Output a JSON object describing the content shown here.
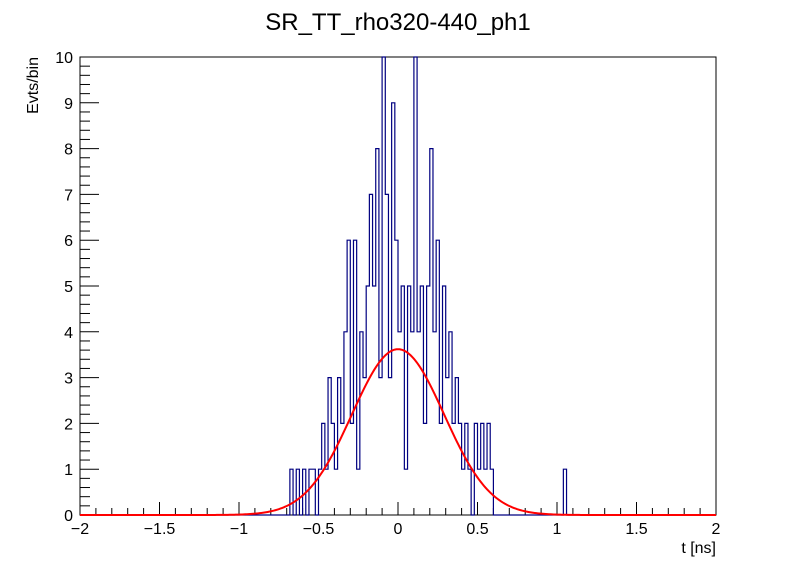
{
  "chart_data": {
    "type": "histogram",
    "title": "SR_TT_rho320-440_ph1",
    "xlabel": "t [ns]",
    "ylabel": "Evts/bin",
    "xlim": [
      -2,
      2
    ],
    "ylim": [
      0,
      10
    ],
    "x_ticks": [
      "−2",
      "−1.5",
      "−1",
      "−0.5",
      "0",
      "0.5",
      "1",
      "1.5",
      "2"
    ],
    "x_tick_values": [
      -2,
      -1.5,
      -1,
      -0.5,
      0,
      0.5,
      1,
      1.5,
      2
    ],
    "y_ticks": [
      "0",
      "1",
      "2",
      "3",
      "4",
      "5",
      "6",
      "7",
      "8",
      "9",
      "10"
    ],
    "y_tick_values": [
      0,
      1,
      2,
      3,
      4,
      5,
      6,
      7,
      8,
      9,
      10
    ],
    "bin_width": 0.02,
    "histogram_color": "#000080",
    "fit_color": "#ff0000",
    "bins": [
      [
        -0.68,
        1
      ],
      [
        -0.66,
        0
      ],
      [
        -0.64,
        1
      ],
      [
        -0.62,
        0
      ],
      [
        -0.6,
        1
      ],
      [
        -0.58,
        0
      ],
      [
        -0.56,
        1
      ],
      [
        -0.54,
        1
      ],
      [
        -0.52,
        0
      ],
      [
        -0.5,
        1
      ],
      [
        -0.48,
        2
      ],
      [
        -0.46,
        1
      ],
      [
        -0.44,
        3
      ],
      [
        -0.42,
        2
      ],
      [
        -0.4,
        1
      ],
      [
        -0.38,
        3
      ],
      [
        -0.36,
        2
      ],
      [
        -0.34,
        4
      ],
      [
        -0.32,
        6
      ],
      [
        -0.3,
        2
      ],
      [
        -0.28,
        6
      ],
      [
        -0.26,
        1
      ],
      [
        -0.24,
        4
      ],
      [
        -0.22,
        3
      ],
      [
        -0.2,
        5
      ],
      [
        -0.18,
        7
      ],
      [
        -0.16,
        5
      ],
      [
        -0.14,
        8
      ],
      [
        -0.12,
        3
      ],
      [
        -0.1,
        10
      ],
      [
        -0.08,
        7
      ],
      [
        -0.06,
        3
      ],
      [
        -0.04,
        9
      ],
      [
        -0.02,
        6
      ],
      [
        0.0,
        4
      ],
      [
        0.02,
        5
      ],
      [
        0.04,
        1
      ],
      [
        0.06,
        5
      ],
      [
        0.08,
        4
      ],
      [
        0.1,
        10
      ],
      [
        0.12,
        4
      ],
      [
        0.14,
        5
      ],
      [
        0.16,
        2
      ],
      [
        0.18,
        5
      ],
      [
        0.2,
        8
      ],
      [
        0.22,
        4
      ],
      [
        0.24,
        6
      ],
      [
        0.26,
        2
      ],
      [
        0.28,
        5
      ],
      [
        0.3,
        3
      ],
      [
        0.32,
        4
      ],
      [
        0.34,
        2
      ],
      [
        0.36,
        3
      ],
      [
        0.38,
        2
      ],
      [
        0.4,
        1
      ],
      [
        0.42,
        2
      ],
      [
        0.44,
        1
      ],
      [
        0.46,
        0
      ],
      [
        0.48,
        2
      ],
      [
        0.5,
        1
      ],
      [
        0.52,
        2
      ],
      [
        0.54,
        1
      ],
      [
        0.56,
        2
      ],
      [
        0.58,
        1
      ],
      [
        1.04,
        1
      ]
    ],
    "fit": {
      "function": "gaussian",
      "amplitude": 3.62,
      "mean": 0.0,
      "sigma": 0.29
    }
  }
}
